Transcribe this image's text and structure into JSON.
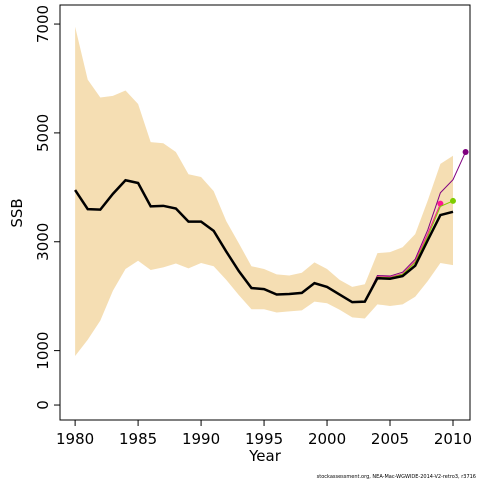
{
  "chart_data": {
    "type": "line",
    "x_label": "Year",
    "y_label": "SSB",
    "footnote": "stockassessment.org, NEA-Mac-WGWIDE-2014-V2-retro3, r3716",
    "x": [
      1980,
      1981,
      1982,
      1983,
      1984,
      1985,
      1986,
      1987,
      1988,
      1989,
      1990,
      1991,
      1992,
      1993,
      1994,
      1995,
      1996,
      1997,
      1998,
      1999,
      2000,
      2001,
      2002,
      2003,
      2004,
      2005,
      2006,
      2007,
      2008,
      2009,
      2010,
      2011
    ],
    "xlim": [
      1978.8,
      2011.35
    ],
    "ylim": [
      -275,
      7350
    ],
    "xticks": [
      1980,
      1985,
      1990,
      1995,
      2000,
      2005,
      2010
    ],
    "yticks": [
      0,
      1000,
      3000,
      5000,
      7000
    ],
    "band": {
      "color": "#f5deb3",
      "upper": [
        6950,
        5980,
        5650,
        5680,
        5780,
        5530,
        4830,
        4810,
        4650,
        4240,
        4190,
        3930,
        3380,
        2970,
        2550,
        2500,
        2400,
        2380,
        2430,
        2620,
        2500,
        2300,
        2170,
        2220,
        2790,
        2810,
        2900,
        3140,
        3760,
        4430,
        4580,
        null
      ],
      "lower": [
        900,
        1200,
        1550,
        2100,
        2500,
        2650,
        2480,
        2530,
        2600,
        2510,
        2610,
        2550,
        2300,
        2020,
        1760,
        1760,
        1700,
        1720,
        1740,
        1900,
        1870,
        1750,
        1610,
        1590,
        1850,
        1820,
        1850,
        1990,
        2280,
        2610,
        2570,
        null
      ]
    },
    "series": [
      {
        "color": "#800080",
        "width": 1,
        "marker": true,
        "values": [
          3950,
          3600,
          3590,
          3880,
          4130,
          4080,
          3650,
          3660,
          3610,
          3370,
          3370,
          3200,
          2820,
          2460,
          2150,
          2130,
          2030,
          2040,
          2060,
          2240,
          2170,
          2030,
          1890,
          1900,
          2380,
          2370,
          2440,
          2680,
          3220,
          3900,
          4140,
          4650
        ]
      },
      {
        "color": "#ff1493",
        "width": 1,
        "marker": true,
        "values": [
          3950,
          3600,
          3590,
          3880,
          4130,
          4080,
          3650,
          3660,
          3610,
          3370,
          3370,
          3200,
          2820,
          2460,
          2150,
          2130,
          2030,
          2040,
          2060,
          2240,
          2170,
          2030,
          1890,
          1900,
          2360,
          2350,
          2410,
          2640,
          3150,
          3700,
          null,
          null
        ]
      },
      {
        "color": "#7fcc00",
        "width": 1,
        "marker": true,
        "values": [
          3950,
          3600,
          3590,
          3880,
          4130,
          4080,
          3650,
          3660,
          3610,
          3370,
          3370,
          3200,
          2820,
          2460,
          2150,
          2130,
          2030,
          2040,
          2060,
          2240,
          2170,
          2030,
          1890,
          1900,
          2350,
          2340,
          2400,
          2620,
          3100,
          3650,
          3750,
          null
        ]
      },
      {
        "color": "#000000",
        "width": 2.5,
        "marker": false,
        "values": [
          3950,
          3600,
          3590,
          3880,
          4130,
          4080,
          3650,
          3660,
          3610,
          3370,
          3370,
          3200,
          2820,
          2460,
          2150,
          2130,
          2030,
          2040,
          2060,
          2240,
          2170,
          2030,
          1890,
          1900,
          2330,
          2320,
          2370,
          2560,
          3030,
          3490,
          3550,
          null
        ]
      }
    ]
  }
}
